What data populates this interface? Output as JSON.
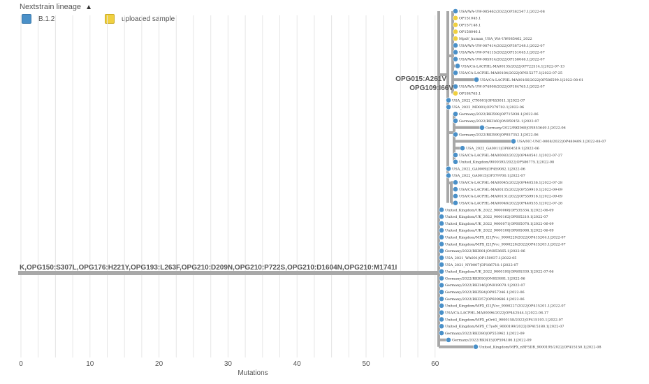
{
  "legend": {
    "title": "Nextstrain lineage",
    "items": [
      {
        "label": "B.1.2",
        "color": "#4a90c8"
      },
      {
        "label": "uploaded sample",
        "color": "#f0d040"
      }
    ]
  },
  "colors": {
    "branch": "#a8a8a8",
    "tip_blue": "#4a90c8",
    "tip_yellow": "#f0d040",
    "grid": "#e6e6e6"
  },
  "axis": {
    "title": "Mutations",
    "ticks": [
      0,
      10,
      20,
      30,
      40,
      50,
      60
    ]
  },
  "branch_labels": {
    "root": "K,OPG150:S307L,OPG176:H221Y,OPG193:L263F,OPG210:D209N,OPG210:P722S,OPG210:D1604N,OPG210:M1741I",
    "clade_a": "OPG015:A261V",
    "clade_b": "OPG109:I66V"
  },
  "tips": [
    {
      "name": "USA/WA-UW-085462/2022|OP382547.1|2022-08",
      "color": "blue"
    },
    {
      "name": "OP151045.1",
      "color": "yellow"
    },
    {
      "name": "OP157148.1",
      "color": "yellow"
    },
    {
      "name": "OP158046.1",
      "color": "yellow"
    },
    {
      "name": "MpxV_human_USA_WA-UW085462_2022",
      "color": "yellow"
    },
    {
      "name": "USA/WA-UW-087414/2022|OP387248.1|2022-07",
      "color": "blue"
    },
    {
      "name": "USA/WA-UW-074115/2022|OP151045.1|2022-07",
      "color": "blue"
    },
    {
      "name": "USA/WA-UW-085914/2022|OP158046.1|2022-07",
      "color": "blue"
    },
    {
      "name": "USA/CA-LACPHL-MA00135/2022|OP722514.1|2022-07-13",
      "color": "blue"
    },
    {
      "name": "USA/CA-LACPHL-MA00184/2022|OP615277.1|2022-07-25",
      "color": "blue"
    },
    {
      "name": "USA/CA-LACPHL-MA00166/2022|OP586599.1|2022-08-01",
      "color": "blue"
    },
    {
      "name": "USA/WA-UW-074908/2022|OP184765.1|2022-07",
      "color": "blue"
    },
    {
      "name": "OP184765.1",
      "color": "yellow"
    },
    {
      "name": "USA_2022_CT0001|OP453011.1|2022-07",
      "color": "blue"
    },
    {
      "name": "USA_2022_MD001|OP379702.1|2022-06",
      "color": "blue"
    },
    {
      "name": "Germany/2022/RKI598|OP715938.1|2022-06",
      "color": "blue"
    },
    {
      "name": "Germany/2022/RKI160|ON959151.1|2022-07",
      "color": "blue"
    },
    {
      "name": "Germany/2022/RKI068|ON853649.1|2022-06",
      "color": "blue"
    },
    {
      "name": "Germany/2022/RKI590|OP857352.1|2022-06",
      "color": "blue"
    },
    {
      "name": "USA/NC-UNC-0008/2022|OP480409.1|2022-08-07",
      "color": "blue"
    },
    {
      "name": "USA_2022_GA0011|OP604519.1|2022-06",
      "color": "blue"
    },
    {
      "name": "USA/CA-LACPHL-MA00083/2022|OP440541.1|2022-07-27",
      "color": "blue"
    },
    {
      "name": "United_Kingdom/9000393/2022|OP586775.1|2022-08",
      "color": "blue"
    },
    {
      "name": "USA_2022_GA0009|OP459082.1|2022-06",
      "color": "blue"
    },
    {
      "name": "USA_2022_GA0015|OP379700.1|2022-07",
      "color": "blue"
    },
    {
      "name": "USA/CA-LACPHL-MA00045/2022|OP440536.1|2022-07-28",
      "color": "blue"
    },
    {
      "name": "USA/CA-LACPHL-MA00135/2022|OP559910.1|2022-09-09",
      "color": "blue"
    },
    {
      "name": "USA/CA-LACPHL-MA00131/2022|OP559916.1|2022-09-09",
      "color": "blue"
    },
    {
      "name": "USA/CA-LACPHL-MA00048/2022|OP440535.1|2022-07-28",
      "color": "blue"
    },
    {
      "name": "United_Kingdom/UK_2022_9000068|OP535334.1|2022-06-09",
      "color": "blue"
    },
    {
      "name": "United_Kingdom/UK_2022_9000162|OP605210.1|2022-07",
      "color": "blue"
    },
    {
      "name": "United_Kingdom/UK_2022_9000071|OP605078.1|2022-06-09",
      "color": "blue"
    },
    {
      "name": "United_Kingdom/UK_2022_9000108|OP605088.1|2022-06-09",
      "color": "blue"
    },
    {
      "name": "United_Kingdom/MPX_f21JVcc_9000229/2022|OP415204.1|2022-07",
      "color": "blue"
    },
    {
      "name": "United_Kingdom/MPX_f21JVcc_9000228/2022|OP415203.1|2022-07",
      "color": "blue"
    },
    {
      "name": "Germany/2022/RKI081|ON853665.1|2022-06",
      "color": "blue"
    },
    {
      "name": "USA_2021_WA001|OP150937.1|2022-05",
      "color": "blue"
    },
    {
      "name": "USA_2021_NY0007|OP186710.1|2022-07",
      "color": "blue"
    },
    {
      "name": "United_Kingdom/UK_2022_9000195|OP605339.1|2022-07-06",
      "color": "blue"
    },
    {
      "name": "Germany/2022/RKI050|ON853881.1|2022-06",
      "color": "blue"
    },
    {
      "name": "Germany/2022/RKI146|ON819079.1|2022-07",
      "color": "blue"
    },
    {
      "name": "Germany/2022/RKI584|OP857346.1|2022-06",
      "color": "blue"
    },
    {
      "name": "Germany/2022/RKI357|OP609686.1|2022-06",
      "color": "blue"
    },
    {
      "name": "United_Kingdom/MPX_f21JVcc_9000227/2022|OP415201.1|2022-07",
      "color": "blue"
    },
    {
      "name": "USA/CA-LACPHL-MA00096/2022|OP442544.1|2022-08-17",
      "color": "blue"
    },
    {
      "name": "United_Kingdom/MPX_pOrtG_9000158/2022|OP415193.1|2022-07",
      "color": "blue"
    },
    {
      "name": "United_Kingdom/MPX_C7yeN_9000199/2022|OP415180.1|2022-07",
      "color": "blue"
    },
    {
      "name": "Germany/2022/RKI380|OP553962.1|2022-09",
      "color": "blue"
    },
    {
      "name": "Germany/2022/RKI415|OP594186.1|2022-09",
      "color": "blue"
    },
    {
      "name": "United_Kingdom/MPX_nRF5DB_9000195/2022|OP415150.1|2022-08",
      "color": "blue"
    }
  ]
}
